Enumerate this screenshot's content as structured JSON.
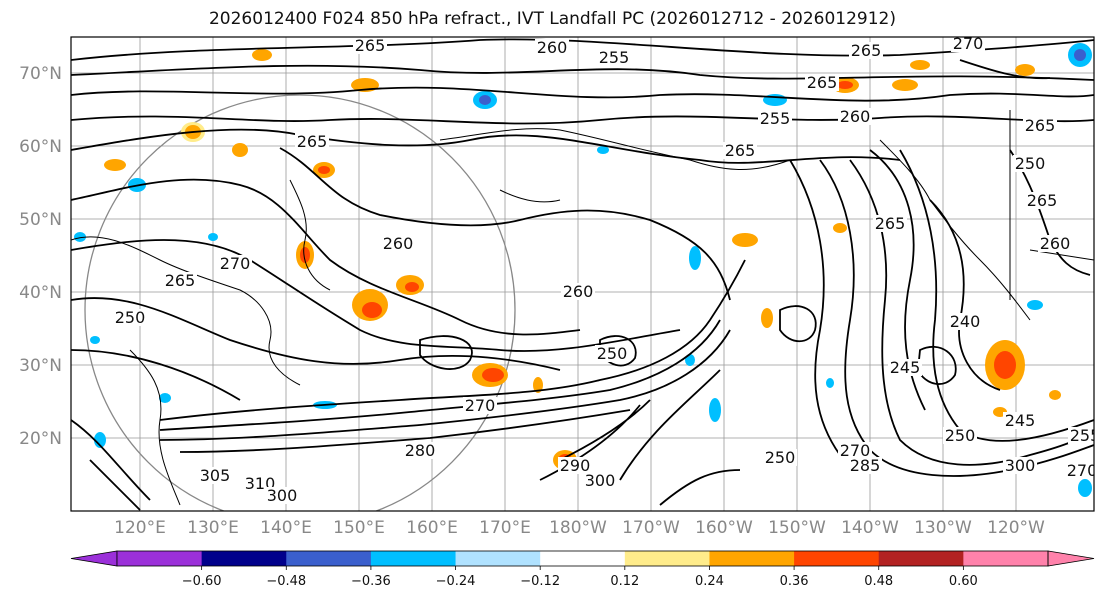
{
  "title": "2026012400 F024 850 hPa refract., IVT Landfall PC (2026012712 - 2026012912)",
  "latitude_labels": [
    "70°N",
    "60°N",
    "50°N",
    "40°N",
    "30°N",
    "20°N"
  ],
  "longitude_labels": [
    "120°E",
    "130°E",
    "140°E",
    "150°E",
    "160°E",
    "170°E",
    "180°W",
    "170°W",
    "160°W",
    "150°W",
    "140°W",
    "130°W",
    "120°W"
  ],
  "contour_labels": [
    "265",
    "260",
    "255",
    "265",
    "270",
    "265",
    "260",
    "255",
    "265",
    "265",
    "250",
    "265",
    "260",
    "265",
    "260",
    "270",
    "250",
    "240",
    "245",
    "250",
    "260",
    "265",
    "250",
    "305",
    "310",
    "300",
    "280",
    "270",
    "290",
    "300",
    "285",
    "270",
    "250",
    "245",
    "300",
    "270",
    "255",
    "265"
  ],
  "colorbar": {
    "colors": [
      "#9b30d9",
      "#00008b",
      "#3a5fcd",
      "#00bfff",
      "#b0e2ff",
      "#ffffff",
      "#ffec8b",
      "#ffa500",
      "#ff4500",
      "#b22222",
      "#ff82ab"
    ],
    "tick_labels": [
      "−0.60",
      "−0.48",
      "−0.36",
      "−0.24",
      "−0.12",
      "0.12",
      "0.24",
      "0.36",
      "0.48",
      "0.60"
    ]
  }
}
